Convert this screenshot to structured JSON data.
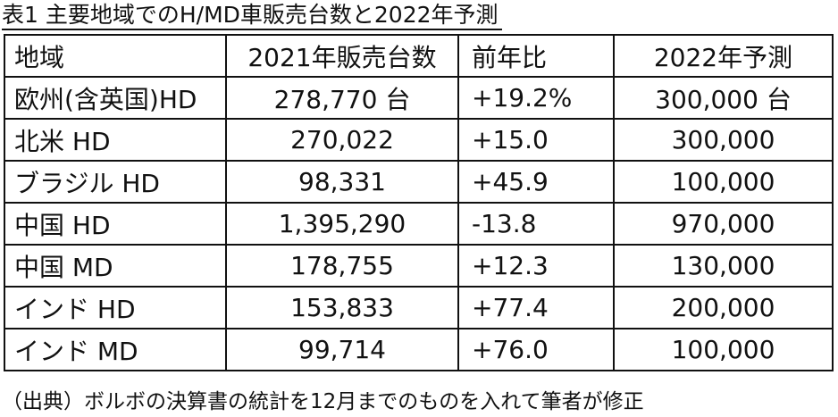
{
  "title": "表1 主要地域でのH/MD車販売台数と2022年予測",
  "table": {
    "header": [
      "地域",
      "2021年販売台数",
      "前年比",
      "2022年予測"
    ],
    "rows": [
      [
        "欧州(含英国)HD",
        "278,770 台",
        "+19.2%",
        "300,000 台"
      ],
      [
        "北米 HD",
        "270,022",
        "+15.0",
        "300,000"
      ],
      [
        "ブラジル HD",
        "98,331",
        "+45.9",
        "100,000"
      ],
      [
        "中国 HD",
        "1,395,290",
        "-13.8",
        "970,000"
      ],
      [
        "中国 MD",
        "178,755",
        "+12.3",
        "130,000"
      ],
      [
        "インド HD",
        "153,833",
        "+77.4",
        "200,000"
      ],
      [
        "インド MD",
        "99,714",
        "+76.0",
        "100,000"
      ]
    ]
  },
  "source": "（出典）ボルボの決算書の統計を12月までのものを入れて筆者が修正"
}
